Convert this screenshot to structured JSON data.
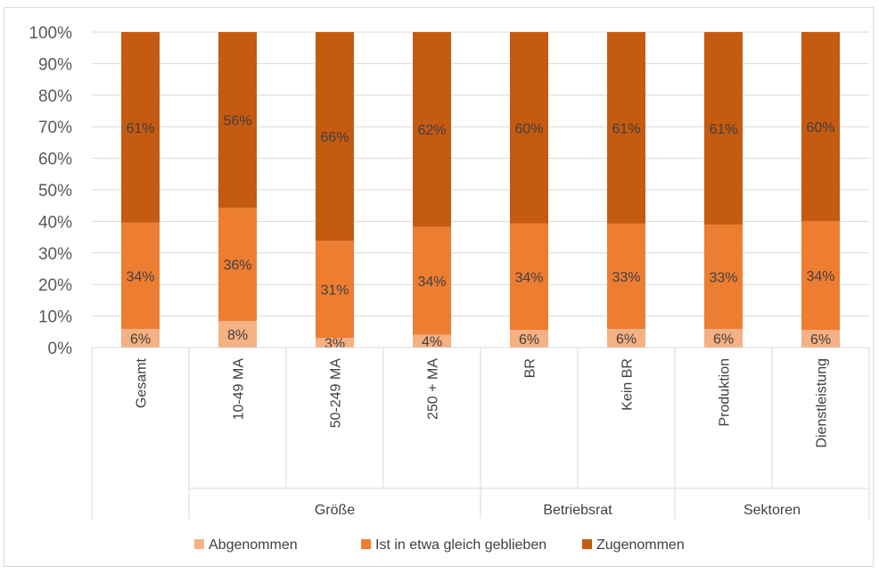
{
  "chart_data": {
    "type": "bar",
    "stacked": true,
    "percent_stacked": true,
    "title": "",
    "xlabel": "",
    "ylabel": "",
    "ylim": [
      0,
      100
    ],
    "y_ticks": [
      0,
      10,
      20,
      30,
      40,
      50,
      60,
      70,
      80,
      90,
      100
    ],
    "y_tick_suffix": "%",
    "grid": true,
    "legend_position": "bottom",
    "categories": [
      "Gesamt",
      "10-49 MA",
      "50-249 MA",
      "250 + MA",
      "BR",
      "Kein BR",
      "Produktion",
      "Dienstleistung"
    ],
    "category_groups": [
      {
        "label": "",
        "categories": [
          "Gesamt"
        ]
      },
      {
        "label": "Größe",
        "categories": [
          "10-49 MA",
          "50-249 MA",
          "250 + MA"
        ]
      },
      {
        "label": "Betriebsrat",
        "categories": [
          "BR",
          "Kein BR"
        ]
      },
      {
        "label": "Sektoren",
        "categories": [
          "Produktion",
          "Dienstleistung"
        ]
      }
    ],
    "series": [
      {
        "name": "Abgenommen",
        "color": "#f4b183",
        "values": [
          6,
          8,
          3,
          4,
          6,
          6,
          6,
          6
        ],
        "labels": [
          "6%",
          "8%",
          "3%",
          "4%",
          "6%",
          "6%",
          "6%",
          "6%"
        ],
        "plotted": [
          5.9,
          8.4,
          3.1,
          4.1,
          5.6,
          5.9,
          5.9,
          5.6
        ]
      },
      {
        "name": "Ist in etwa gleich geblieben",
        "color": "#ed7d31",
        "values": [
          34,
          36,
          31,
          34,
          34,
          33,
          33,
          34
        ],
        "labels": [
          "34%",
          "36%",
          "31%",
          "34%",
          "34%",
          "33%",
          "33%",
          "34%"
        ],
        "plotted": [
          33.7,
          35.9,
          30.7,
          34.2,
          33.8,
          33.4,
          33.1,
          34.5
        ]
      },
      {
        "name": "Zugenommen",
        "color": "#c55a11",
        "values": [
          61,
          56,
          66,
          62,
          60,
          61,
          61,
          60
        ],
        "labels": [
          "61%",
          "56%",
          "66%",
          "62%",
          "60%",
          "61%",
          "61%",
          "60%"
        ],
        "plotted": [
          60.4,
          55.7,
          66.2,
          61.7,
          60.6,
          60.7,
          61.0,
          59.9
        ]
      }
    ]
  }
}
